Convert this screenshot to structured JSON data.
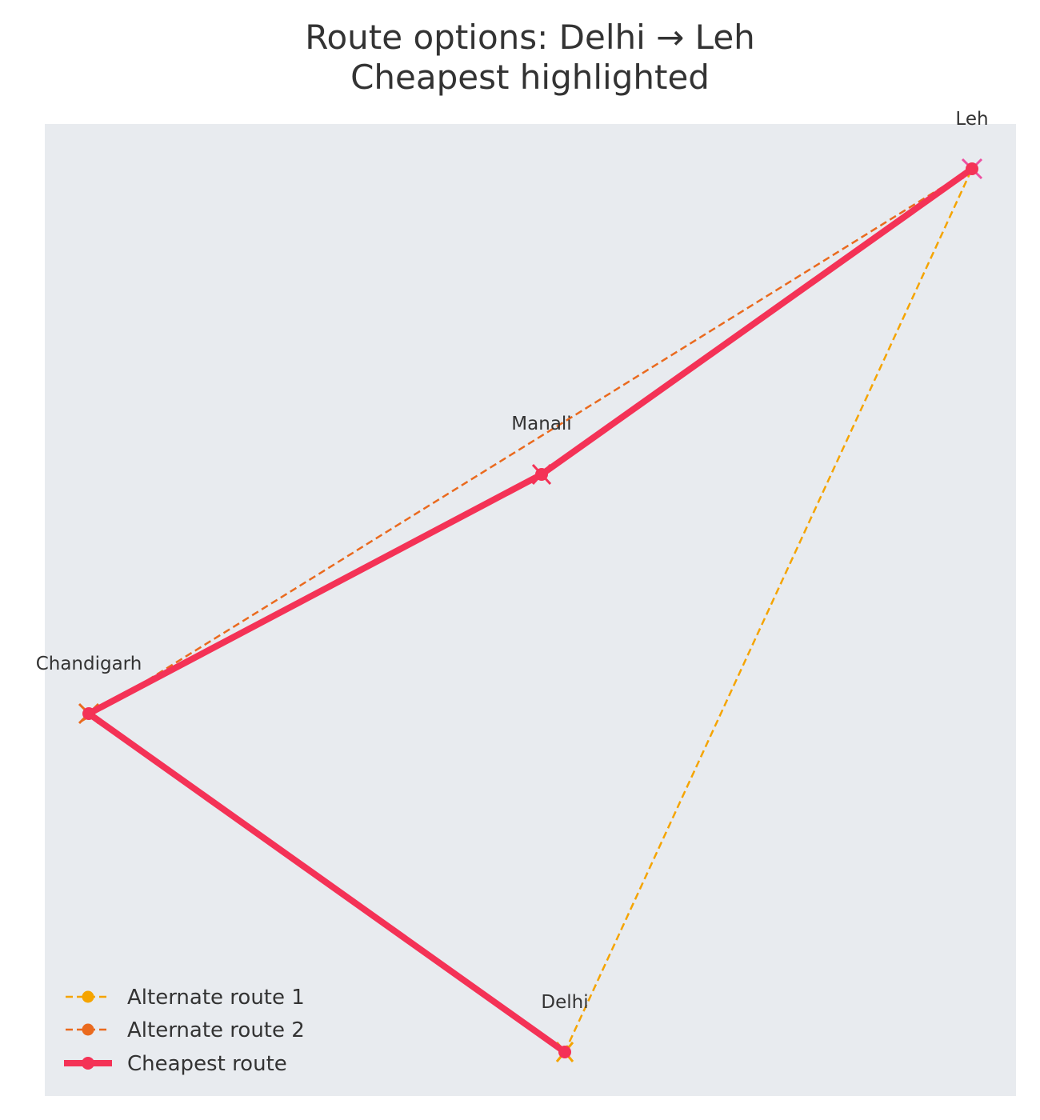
{
  "title_line1": "Route options: Delhi → Leh",
  "title_line2": "Cheapest highlighted",
  "colors": {
    "background": "#e8ebef",
    "alternate_route_1": "#f5a400",
    "alternate_route_2": "#ea6a1e",
    "cheapest_route": "#f43256",
    "leh_marker": "#ee4fa0",
    "text": "#333333"
  },
  "chart_data": {
    "type": "network",
    "nodes": [
      {
        "name": "Delhi"
      },
      {
        "name": "Chandigarh"
      },
      {
        "name": "Manali"
      },
      {
        "name": "Leh"
      }
    ],
    "routes": [
      {
        "name": "Alternate route 1",
        "style": "dashed",
        "path": [
          "Delhi",
          "Leh"
        ]
      },
      {
        "name": "Alternate route 2",
        "style": "dashed",
        "path": [
          "Chandigarh",
          "Leh"
        ]
      },
      {
        "name": "Cheapest route",
        "style": "solid",
        "path": [
          "Delhi",
          "Chandigarh",
          "Manali",
          "Leh"
        ]
      }
    ],
    "legend_position": "bottom-left",
    "grid": false
  }
}
